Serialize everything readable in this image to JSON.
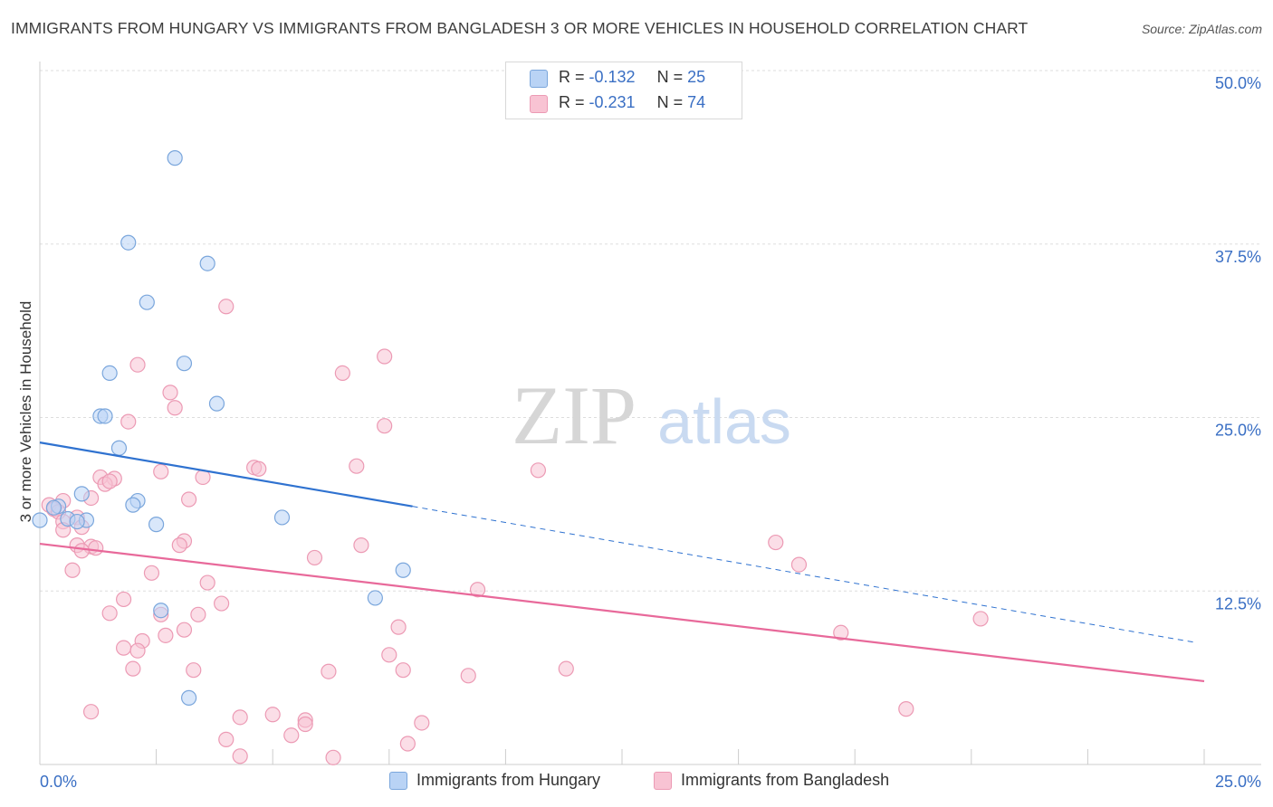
{
  "title": "IMMIGRANTS FROM HUNGARY VS IMMIGRANTS FROM BANGLADESH 3 OR MORE VEHICLES IN HOUSEHOLD CORRELATION CHART",
  "source": "Source: ZipAtlas.com",
  "watermark": {
    "zip": "ZIP",
    "atlas": "atlas"
  },
  "legend": {
    "hungary": {
      "r_label": "R = ",
      "r_value": "-0.132",
      "n_label": "N = ",
      "n_value": "25"
    },
    "bangladesh": {
      "r_label": "R = ",
      "r_value": "-0.231",
      "n_label": "N = ",
      "n_value": "74"
    }
  },
  "bottom_legend": {
    "hungary": "Immigrants from Hungary",
    "bangladesh": "Immigrants from Bangladesh"
  },
  "colors": {
    "hungary_fill": "#b9d3f5",
    "hungary_stroke": "#7aa6dc",
    "hungary_line": "#2f72d0",
    "bangladesh_fill": "#f8c3d3",
    "bangladesh_stroke": "#ec9ab4",
    "bangladesh_line": "#e8699a",
    "tick_label": "#3a6fc4",
    "grid": "#dddddd"
  },
  "chart_data": {
    "type": "scatter",
    "title": "IMMIGRANTS FROM HUNGARY VS IMMIGRANTS FROM BANGLADESH 3 OR MORE VEHICLES IN HOUSEHOLD CORRELATION CHART",
    "xlabel": "",
    "ylabel": "3 or more Vehicles in Household",
    "xlim": [
      0,
      25
    ],
    "ylim": [
      0,
      50
    ],
    "x_tick_labels": [
      "0.0%",
      "25.0%"
    ],
    "y_ticks": [
      12.5,
      25.0,
      37.5,
      50.0
    ],
    "y_tick_labels": [
      "12.5%",
      "25.0%",
      "37.5%",
      "50.0%"
    ],
    "grid": true,
    "series": [
      {
        "name": "Immigrants from Hungary",
        "r": -0.132,
        "n": 25,
        "trend": {
          "x0": 0.0,
          "y0": 23.2,
          "x1": 8.0,
          "y1": 18.6,
          "dashed_to_x": 24.8,
          "dashed_to_y": 8.8
        },
        "points": [
          [
            2.9,
            43.7
          ],
          [
            1.9,
            37.6
          ],
          [
            3.6,
            36.1
          ],
          [
            2.3,
            33.3
          ],
          [
            3.1,
            28.9
          ],
          [
            1.5,
            28.2
          ],
          [
            3.8,
            26.0
          ],
          [
            1.3,
            25.1
          ],
          [
            1.4,
            25.1
          ],
          [
            1.7,
            22.8
          ],
          [
            0.9,
            19.5
          ],
          [
            2.1,
            19.0
          ],
          [
            0.4,
            18.6
          ],
          [
            0.3,
            18.5
          ],
          [
            2.0,
            18.7
          ],
          [
            0.6,
            17.7
          ],
          [
            1.0,
            17.6
          ],
          [
            0.8,
            17.5
          ],
          [
            2.5,
            17.3
          ],
          [
            5.2,
            17.8
          ],
          [
            7.8,
            14.0
          ],
          [
            7.2,
            12.0
          ],
          [
            2.6,
            11.1
          ],
          [
            3.2,
            4.8
          ],
          [
            0.0,
            17.6
          ]
        ]
      },
      {
        "name": "Immigrants from Bangladesh",
        "r": -0.231,
        "n": 74,
        "trend": {
          "x0": 0.0,
          "y0": 15.9,
          "x1": 25.0,
          "y1": 6.0
        },
        "points": [
          [
            4.0,
            33.0
          ],
          [
            7.4,
            29.4
          ],
          [
            2.1,
            28.8
          ],
          [
            6.5,
            28.2
          ],
          [
            2.8,
            26.8
          ],
          [
            2.9,
            25.7
          ],
          [
            1.9,
            24.7
          ],
          [
            7.4,
            24.4
          ],
          [
            4.6,
            21.4
          ],
          [
            4.7,
            21.3
          ],
          [
            6.8,
            21.5
          ],
          [
            10.7,
            21.2
          ],
          [
            2.6,
            21.1
          ],
          [
            3.5,
            20.7
          ],
          [
            1.3,
            20.7
          ],
          [
            1.6,
            20.6
          ],
          [
            1.4,
            20.2
          ],
          [
            1.5,
            20.4
          ],
          [
            3.2,
            19.1
          ],
          [
            1.1,
            19.2
          ],
          [
            0.5,
            19.0
          ],
          [
            0.2,
            18.7
          ],
          [
            0.3,
            18.4
          ],
          [
            0.4,
            18.2
          ],
          [
            0.8,
            17.8
          ],
          [
            0.5,
            17.5
          ],
          [
            0.9,
            17.1
          ],
          [
            0.5,
            16.9
          ],
          [
            3.1,
            16.1
          ],
          [
            3.0,
            15.8
          ],
          [
            6.9,
            15.8
          ],
          [
            15.8,
            16.0
          ],
          [
            1.1,
            15.7
          ],
          [
            1.2,
            15.6
          ],
          [
            0.8,
            15.8
          ],
          [
            0.9,
            15.4
          ],
          [
            5.9,
            14.9
          ],
          [
            16.3,
            14.4
          ],
          [
            0.7,
            14.0
          ],
          [
            2.4,
            13.8
          ],
          [
            3.6,
            13.1
          ],
          [
            9.4,
            12.6
          ],
          [
            1.8,
            11.9
          ],
          [
            3.9,
            11.6
          ],
          [
            1.5,
            10.9
          ],
          [
            2.6,
            10.8
          ],
          [
            3.4,
            10.8
          ],
          [
            7.7,
            9.9
          ],
          [
            20.2,
            10.5
          ],
          [
            3.1,
            9.7
          ],
          [
            2.7,
            9.3
          ],
          [
            17.2,
            9.5
          ],
          [
            2.2,
            8.9
          ],
          [
            1.8,
            8.4
          ],
          [
            2.1,
            8.2
          ],
          [
            7.5,
            7.9
          ],
          [
            2.0,
            6.9
          ],
          [
            3.3,
            6.8
          ],
          [
            7.8,
            6.8
          ],
          [
            11.3,
            6.9
          ],
          [
            6.2,
            6.7
          ],
          [
            9.2,
            6.4
          ],
          [
            1.1,
            3.8
          ],
          [
            4.3,
            3.4
          ],
          [
            5.0,
            3.6
          ],
          [
            5.7,
            3.2
          ],
          [
            5.7,
            2.9
          ],
          [
            18.6,
            4.0
          ],
          [
            8.2,
            3.0
          ],
          [
            5.4,
            2.1
          ],
          [
            4.0,
            1.8
          ],
          [
            7.9,
            1.5
          ],
          [
            4.3,
            0.6
          ],
          [
            6.3,
            0.5
          ]
        ]
      }
    ]
  }
}
